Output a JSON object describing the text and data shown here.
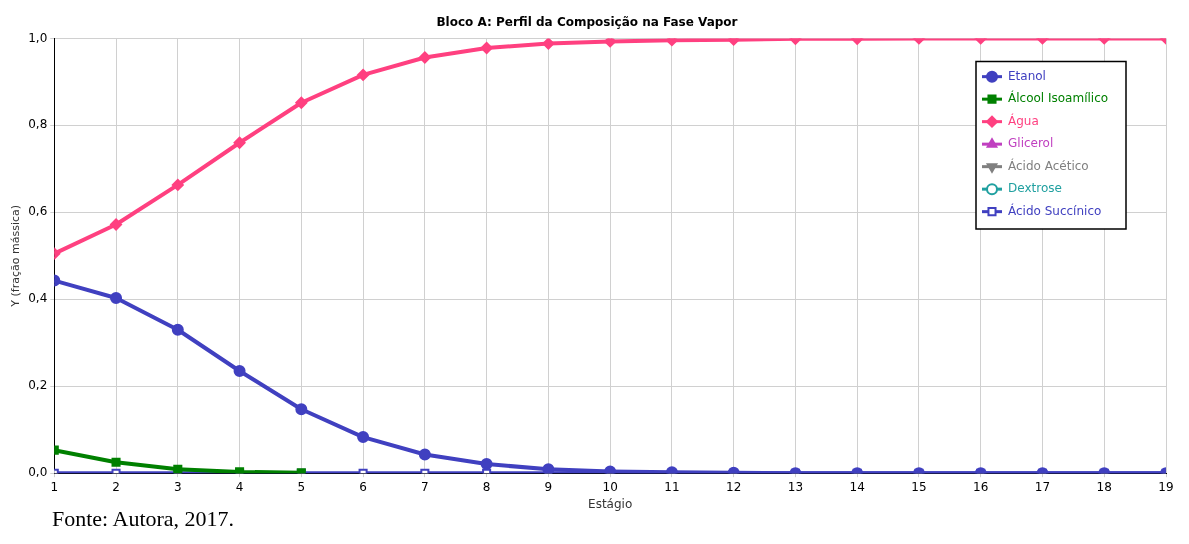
{
  "chart_data": {
    "type": "line",
    "title": "Bloco A: Perfil da Composição na Fase Vapor",
    "xlabel": "Estágio",
    "ylabel": "Y (fração mássica)",
    "x": [
      1,
      2,
      3,
      4,
      5,
      6,
      7,
      8,
      9,
      10,
      11,
      12,
      13,
      14,
      15,
      16,
      17,
      18,
      19
    ],
    "xlim": [
      1,
      19
    ],
    "xticks": [
      1,
      2,
      3,
      4,
      5,
      6,
      7,
      8,
      9,
      10,
      11,
      12,
      13,
      14,
      15,
      16,
      17,
      18,
      19
    ],
    "ylim": [
      0,
      1
    ],
    "yticks": [
      {
        "value": 0,
        "label": "0,0"
      },
      {
        "value": 0.2,
        "label": "0,2"
      },
      {
        "value": 0.4,
        "label": "0,4"
      },
      {
        "value": 0.6,
        "label": "0,6"
      },
      {
        "value": 0.8,
        "label": "0,8"
      },
      {
        "value": 1,
        "label": "1,0"
      }
    ],
    "grid": true,
    "legend": "top right",
    "series": [
      {
        "name": "Etanol",
        "color": "#4040c0",
        "marker": "circle",
        "values": [
          0.443,
          0.403,
          0.33,
          0.235,
          0.147,
          0.083,
          0.043,
          0.021,
          0.009,
          0.004,
          0.002,
          0.001,
          0,
          0,
          0,
          0,
          0,
          0,
          0
        ]
      },
      {
        "name": "Álcool Isoamílico",
        "color": "#008000",
        "marker": "square",
        "values": [
          0.053,
          0.025,
          0.009,
          0.003,
          0.001,
          null,
          null,
          null,
          null,
          null,
          null,
          null,
          null,
          null,
          null,
          null,
          null,
          null,
          null
        ]
      },
      {
        "name": "Água",
        "color": "#ff4080",
        "marker": "diamond",
        "values": [
          0.505,
          0.572,
          0.663,
          0.76,
          0.852,
          0.916,
          0.956,
          0.978,
          0.988,
          0.993,
          0.996,
          0.997,
          0.999,
          0.999,
          1,
          1,
          1,
          1,
          1
        ]
      },
      {
        "name": "Glicerol",
        "color": "#c040c0",
        "marker": "triangle",
        "values": [
          null,
          null,
          null,
          null,
          null,
          null,
          null,
          null,
          null,
          null,
          null,
          null,
          null,
          null,
          null,
          null,
          null,
          null,
          null
        ]
      },
      {
        "name": "Ácido Acético",
        "color": "#808080",
        "marker": "triangle-down",
        "values": [
          null,
          null,
          null,
          null,
          null,
          null,
          null,
          null,
          null,
          null,
          null,
          null,
          null,
          null,
          null,
          null,
          null,
          null,
          null
        ]
      },
      {
        "name": "Dextrose",
        "color": "#20a0a0",
        "marker": "circle-open",
        "values": [
          null,
          null,
          null,
          null,
          null,
          null,
          null,
          null,
          null,
          null,
          null,
          null,
          null,
          null,
          null,
          null,
          null,
          null,
          null
        ]
      },
      {
        "name": "Ácido Succínico",
        "color": "#4040c0",
        "marker": "square-open",
        "values": [
          0,
          0,
          0,
          0,
          0,
          0,
          0,
          0,
          0,
          0,
          0,
          0,
          0,
          0,
          0,
          0,
          0,
          0,
          0
        ]
      }
    ],
    "annotations": [
      "Fonte: Autora, 2017."
    ]
  }
}
